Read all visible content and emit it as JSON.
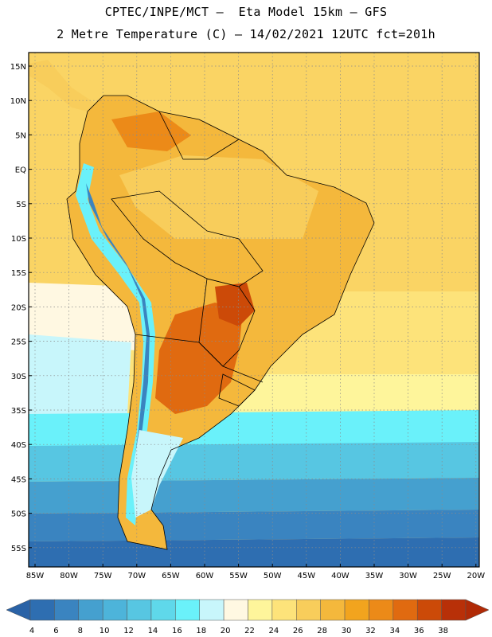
{
  "header": {
    "line1": "CPTEC/INPE/MCT –  Eta Model 15km – GFS",
    "line2": "2 Metre Temperature (C) – 14/02/2021 12UTC fct=201h"
  },
  "axes": {
    "lat_labels": [
      "15N",
      "10N",
      "5N",
      "EQ",
      "5S",
      "10S",
      "15S",
      "20S",
      "25S",
      "30S",
      "35S",
      "40S",
      "45S",
      "50S",
      "55S"
    ],
    "lon_labels": [
      "85W",
      "80W",
      "75W",
      "70W",
      "65W",
      "60W",
      "55W",
      "50W",
      "45W",
      "40W",
      "35W",
      "30W",
      "25W",
      "20W"
    ]
  },
  "colorbar": {
    "ticks": [
      "4",
      "6",
      "8",
      "10",
      "12",
      "14",
      "16",
      "18",
      "20",
      "22",
      "24",
      "26",
      "28",
      "30",
      "32",
      "34",
      "36",
      "38"
    ],
    "colors": [
      "#2e6eb1",
      "#3a84c0",
      "#45a0cf",
      "#4db4da",
      "#57c6e2",
      "#5fd8ea",
      "#6af1fa",
      "#c8f6fb",
      "#fff8e2",
      "#fef59b",
      "#fde37a",
      "#f8cd5b",
      "#f4b83c",
      "#f2a41e",
      "#ec8a18",
      "#e06a10",
      "#cc4a08",
      "#b83008"
    ],
    "low_color": "#2a62a6",
    "high_color": "#b02a06"
  }
}
